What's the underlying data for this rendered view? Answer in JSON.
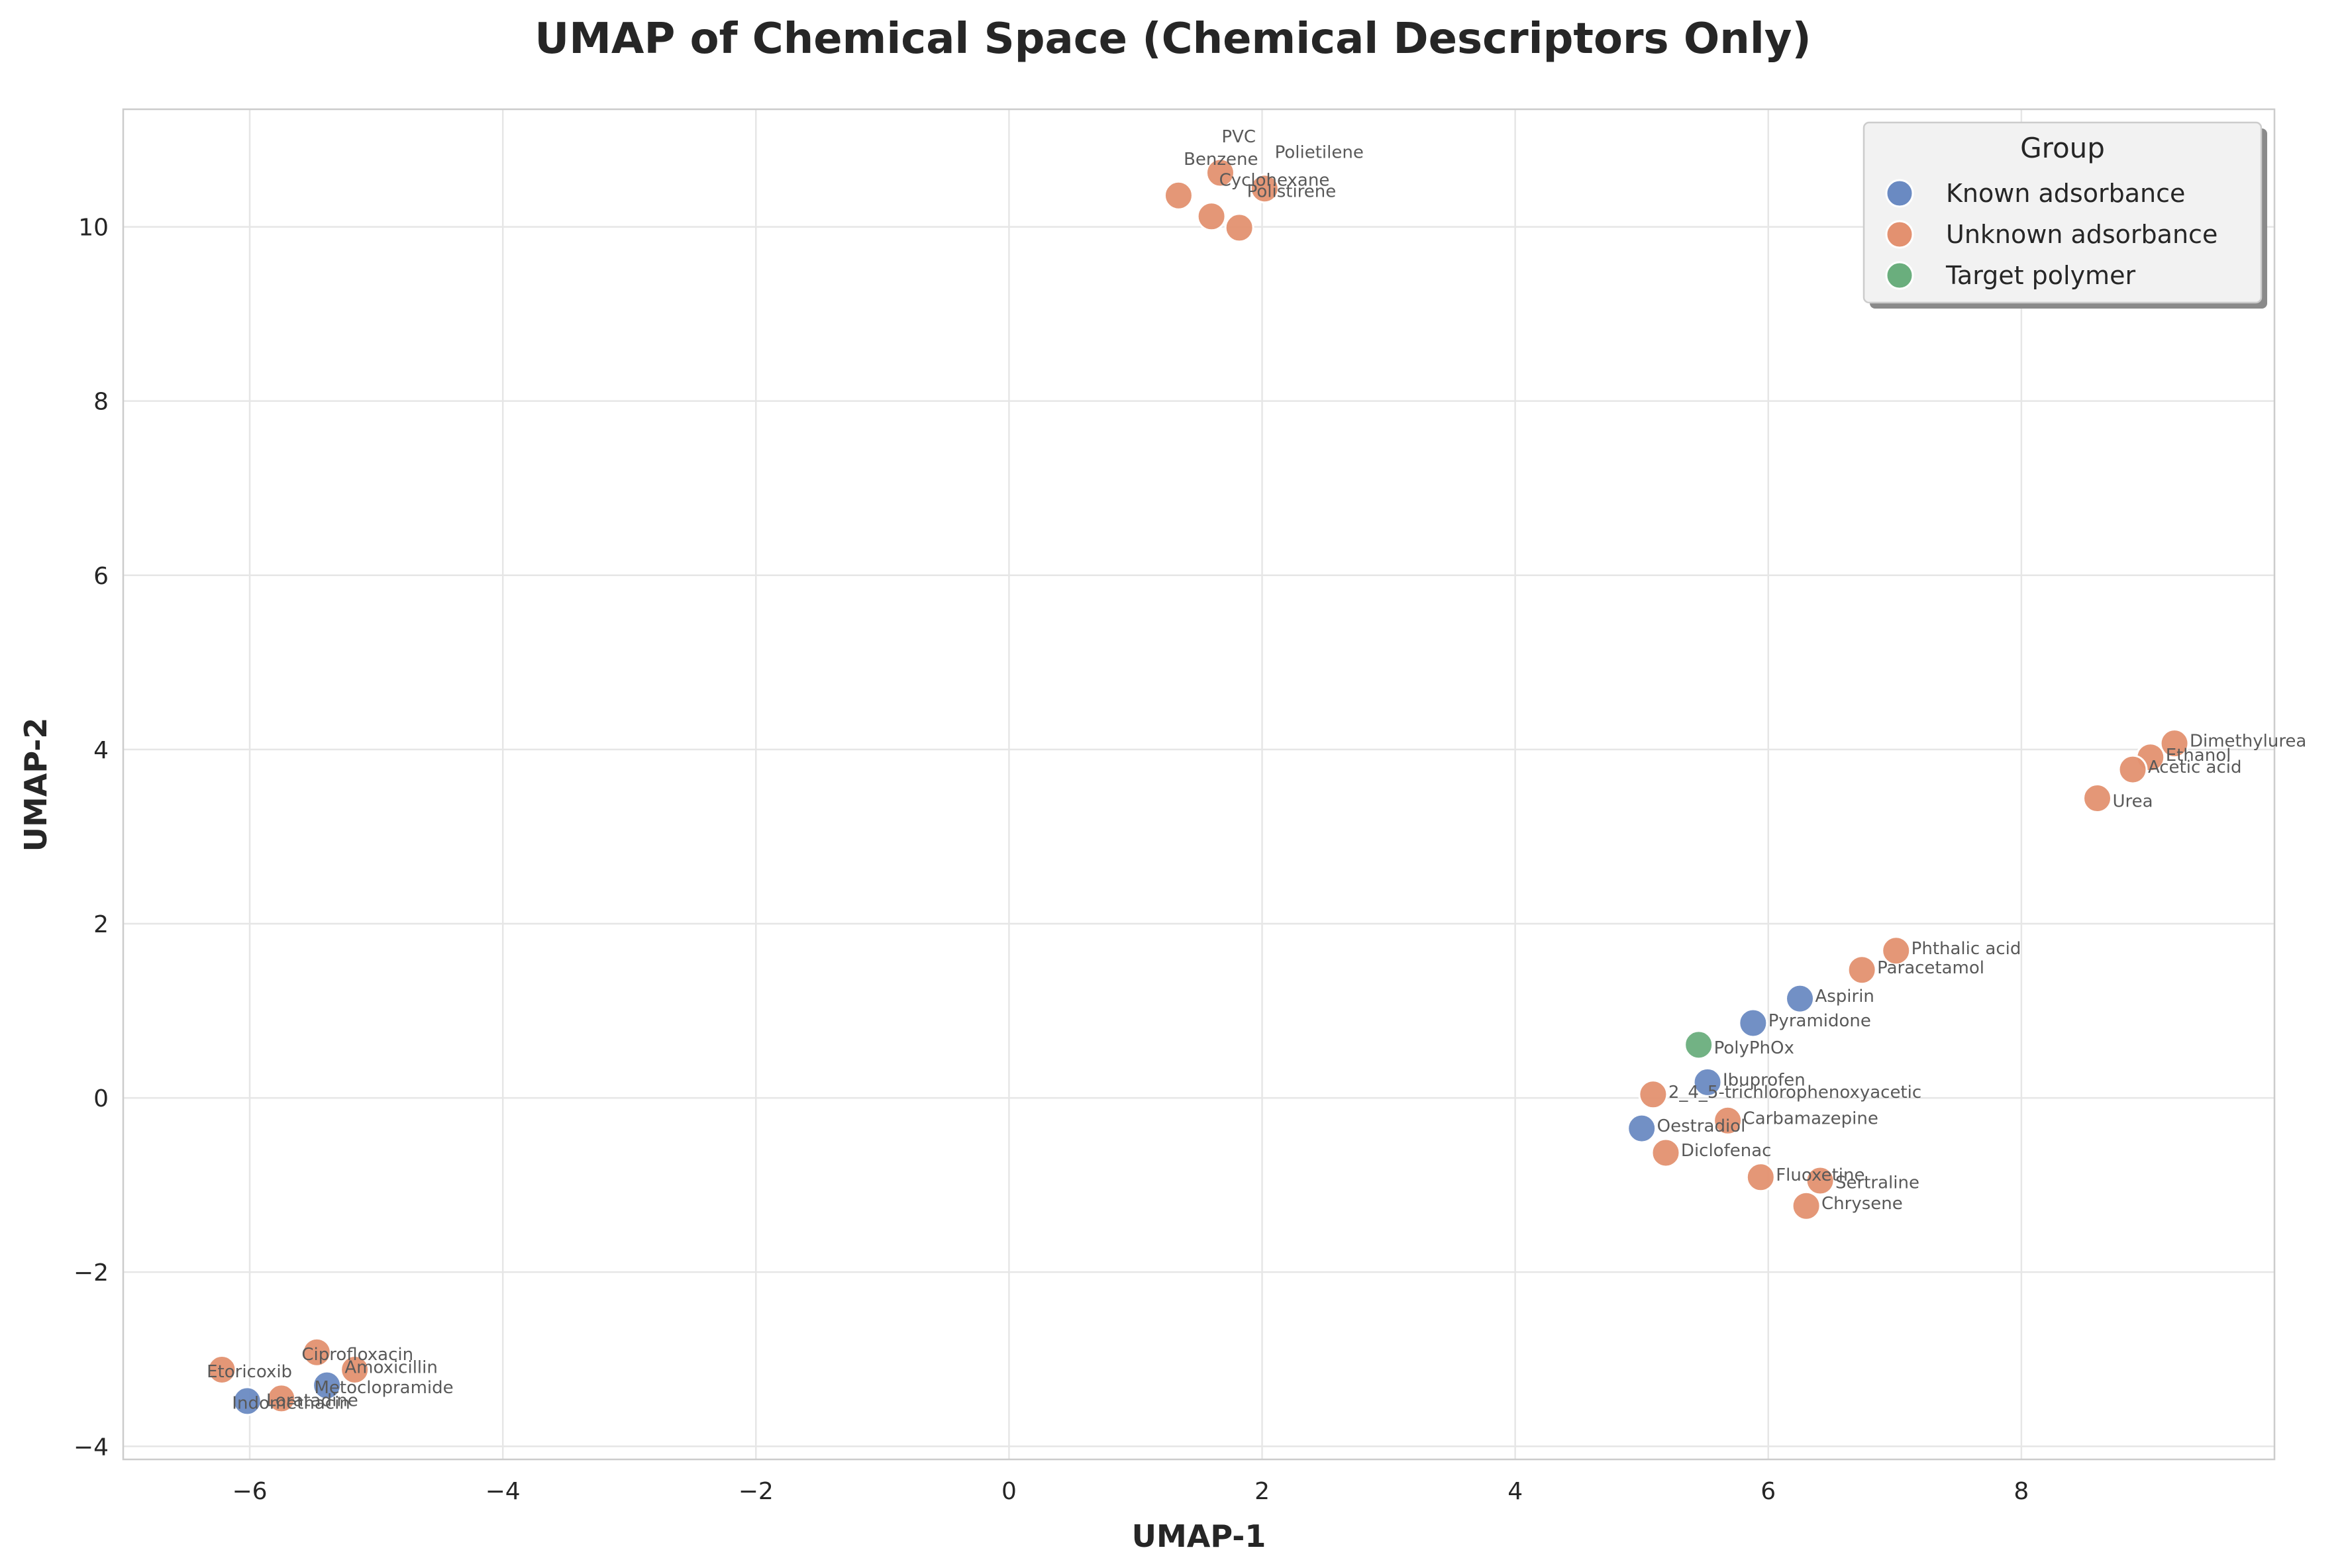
{
  "chart_data": {
    "type": "scatter",
    "title": "UMAP of Chemical Space (Chemical Descriptors Only)",
    "xlabel": "UMAP-1",
    "ylabel": "UMAP-2",
    "xlim": [
      -7.0,
      10.0
    ],
    "ylim": [
      -4.15,
      11.35
    ],
    "x_ticks": [
      -6,
      -4,
      -2,
      0,
      2,
      4,
      6,
      8
    ],
    "y_ticks": [
      -4,
      -2,
      0,
      2,
      4,
      6,
      8,
      10
    ],
    "grid": true,
    "legend": {
      "title": "Group",
      "placement": "top-right",
      "entries": [
        {
          "name": "Known adsorbance",
          "color": "#6a8ac2"
        },
        {
          "name": "Unknown adsorbance",
          "color": "#e39170"
        },
        {
          "name": "Target polymer",
          "color": "#6aae7d"
        }
      ]
    },
    "points": [
      {
        "label": "PVC",
        "x": 1.67,
        "y": 10.62,
        "group": "Unknown adsorbance",
        "ldx": 0.01,
        "ldy": 0.42
      },
      {
        "label": "Polietilene",
        "x": 2.02,
        "y": 10.44,
        "group": "Unknown adsorbance",
        "ldx": 0.08,
        "ldy": 0.42
      },
      {
        "label": "Benzene",
        "x": 1.34,
        "y": 10.36,
        "group": "Unknown adsorbance",
        "ldx": 0.04,
        "ldy": 0.42
      },
      {
        "label": "Cyclohexane",
        "x": 1.6,
        "y": 10.12,
        "group": "Unknown adsorbance",
        "ldx": 0.06,
        "ldy": 0.42
      },
      {
        "label": "Polistirene",
        "x": 1.82,
        "y": 9.99,
        "group": "Unknown adsorbance",
        "ldx": 0.06,
        "ldy": 0.42
      },
      {
        "label": "Dimethylurea",
        "x": 9.21,
        "y": 4.07,
        "group": "Unknown adsorbance",
        "ldx": 0.12,
        "ldy": 0.03
      },
      {
        "label": "Ethanol",
        "x": 9.02,
        "y": 3.91,
        "group": "Unknown adsorbance",
        "ldx": 0.12,
        "ldy": 0.03
      },
      {
        "label": "Acetic acid",
        "x": 8.88,
        "y": 3.77,
        "group": "Unknown adsorbance",
        "ldx": 0.12,
        "ldy": 0.03
      },
      {
        "label": "Urea",
        "x": 8.6,
        "y": 3.44,
        "group": "Unknown adsorbance",
        "ldx": 0.12,
        "ldy": -0.03
      },
      {
        "label": "Phthalic acid",
        "x": 7.01,
        "y": 1.69,
        "group": "Unknown adsorbance",
        "ldx": 0.12,
        "ldy": 0.03
      },
      {
        "label": "Paracetamol",
        "x": 6.74,
        "y": 1.47,
        "group": "Unknown adsorbance",
        "ldx": 0.12,
        "ldy": 0.03
      },
      {
        "label": "Aspirin",
        "x": 6.25,
        "y": 1.14,
        "group": "Known adsorbance",
        "ldx": 0.12,
        "ldy": 0.03
      },
      {
        "label": "Pyramidone",
        "x": 5.88,
        "y": 0.86,
        "group": "Known adsorbance",
        "ldx": 0.12,
        "ldy": 0.03
      },
      {
        "label": "PolyPhOx",
        "x": 5.45,
        "y": 0.61,
        "group": "Target polymer",
        "ldx": 0.12,
        "ldy": -0.03
      },
      {
        "label": "Ibuprofen",
        "x": 5.52,
        "y": 0.18,
        "group": "Known adsorbance",
        "ldx": 0.12,
        "ldy": 0.03
      },
      {
        "label": "2_4_5-trichlorophenoxyacetic",
        "x": 5.09,
        "y": 0.04,
        "group": "Unknown adsorbance",
        "ldx": 0.12,
        "ldy": 0.03
      },
      {
        "label": "Carbamazepine",
        "x": 5.68,
        "y": -0.26,
        "group": "Unknown adsorbance",
        "ldx": 0.12,
        "ldy": 0.03
      },
      {
        "label": "Oestradiol",
        "x": 5.0,
        "y": -0.35,
        "group": "Known adsorbance",
        "ldx": 0.12,
        "ldy": 0.03
      },
      {
        "label": "Diclofenac",
        "x": 5.19,
        "y": -0.63,
        "group": "Unknown adsorbance",
        "ldx": 0.12,
        "ldy": 0.03
      },
      {
        "label": "Fluoxetine",
        "x": 5.94,
        "y": -0.91,
        "group": "Unknown adsorbance",
        "ldx": 0.12,
        "ldy": 0.03
      },
      {
        "label": "Sertraline",
        "x": 6.41,
        "y": -0.95,
        "group": "Unknown adsorbance",
        "ldx": 0.12,
        "ldy": -0.02
      },
      {
        "label": "Chrysene",
        "x": 6.3,
        "y": -1.24,
        "group": "Unknown adsorbance",
        "ldx": 0.12,
        "ldy": 0.03
      },
      {
        "label": "Ciprofloxacin",
        "x": -5.47,
        "y": -2.92,
        "group": "Unknown adsorbance",
        "ldx": -0.12,
        "ldy": -0.02
      },
      {
        "label": "Amoxicillin",
        "x": -5.17,
        "y": -3.12,
        "group": "Unknown adsorbance",
        "ldx": -0.08,
        "ldy": 0.03
      },
      {
        "label": "Etoricoxib",
        "x": -6.22,
        "y": -3.12,
        "group": "Unknown adsorbance",
        "ldx": -0.12,
        "ldy": -0.02
      },
      {
        "label": "Metoclopramide",
        "x": -5.39,
        "y": -3.3,
        "group": "Known adsorbance",
        "ldx": -0.1,
        "ldy": -0.02
      },
      {
        "label": "Loratadine",
        "x": -5.75,
        "y": -3.45,
        "group": "Unknown adsorbance",
        "ldx": -0.12,
        "ldy": -0.02
      },
      {
        "label": "Indomethacin",
        "x": -6.02,
        "y": -3.48,
        "group": "Known adsorbance",
        "ldx": -0.12,
        "ldy": -0.02
      }
    ]
  }
}
